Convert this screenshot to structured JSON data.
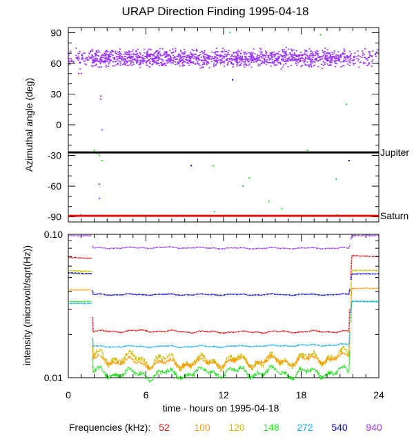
{
  "title": "URAP Direction Finding  1995-04-18",
  "xlabel": "time - hours on 1995-04-18",
  "legend": {
    "label": "Frequencies (kHz):",
    "items": [
      {
        "label": "52",
        "color": "#e01010"
      },
      {
        "label": "100",
        "color": "#ff9900"
      },
      {
        "label": "120",
        "color": "#ccb800"
      },
      {
        "label": "148",
        "color": "#22dd22"
      },
      {
        "label": "272",
        "color": "#11aaee"
      },
      {
        "label": "540",
        "color": "#0000cc"
      },
      {
        "label": "940",
        "color": "#9933ff"
      }
    ]
  },
  "chart_data": [
    {
      "type": "scatter",
      "ylabel": "Azimuthal angle (deg)",
      "xlim": [
        0,
        24
      ],
      "ylim": [
        -95,
        95
      ],
      "xticks": [
        "0",
        "6",
        "12",
        "18",
        "24"
      ],
      "yticks": [
        "90",
        "60",
        "30",
        "0",
        "-30",
        "-60",
        "-90"
      ],
      "reference_lines": [
        {
          "name": "Jupiter",
          "y": -27,
          "color": "#000000"
        },
        {
          "name": "Saturn",
          "y": -89,
          "color": "#e01010"
        }
      ],
      "series": [
        {
          "name": "940",
          "description": "dense cluster",
          "x_range": [
            0,
            24
          ],
          "y_center": 65,
          "y_spread": 8
        },
        {
          "name": "148",
          "points": [
            [
              2,
              -25
            ],
            [
              2.2,
              -28
            ],
            [
              2.4,
              -30
            ],
            [
              2.6,
              -35
            ],
            [
              11.2,
              -40
            ],
            [
              11.3,
              -85
            ],
            [
              12.5,
              90
            ],
            [
              14,
              -52
            ],
            [
              15.5,
              -75
            ],
            [
              16.5,
              -82
            ],
            [
              18.5,
              -25
            ],
            [
              19.5,
              88
            ],
            [
              20.8,
              -88
            ],
            [
              21.5,
              20
            ]
          ]
        }
      ]
    },
    {
      "type": "line",
      "ylabel": "intensity (microvolt/sqrt(Hz))",
      "yscale": "log",
      "xlim": [
        0,
        24
      ],
      "ylim": [
        0.01,
        0.1
      ],
      "yticks": [
        "0.10",
        "0.01"
      ],
      "series": [
        {
          "name": "940",
          "points": [
            [
              0,
              0.098
            ],
            [
              1.8,
              0.098
            ],
            [
              1.9,
              0.08
            ],
            [
              8,
              0.081
            ],
            [
              12,
              0.08
            ],
            [
              21.7,
              0.08
            ],
            [
              21.9,
              0.098
            ],
            [
              24,
              0.098
            ]
          ]
        },
        {
          "name": "52",
          "points": [
            [
              0,
              0.069
            ],
            [
              1.8,
              0.068
            ],
            [
              1.9,
              0.021
            ],
            [
              6,
              0.0212
            ],
            [
              12,
              0.0208
            ],
            [
              21.7,
              0.021
            ],
            [
              21.9,
              0.071
            ],
            [
              24,
              0.07
            ]
          ]
        },
        {
          "name": "120",
          "points": [
            [
              0,
              0.056
            ],
            [
              1.8,
              0.055
            ],
            [
              1.9,
              0.014
            ],
            [
              6,
              0.0135
            ],
            [
              9,
              0.0128
            ],
            [
              12,
              0.0132
            ],
            [
              16,
              0.013
            ],
            [
              21.7,
              0.0145
            ],
            [
              21.9,
              0.056
            ],
            [
              24,
              0.056
            ]
          ]
        },
        {
          "name": "540",
          "points": [
            [
              0,
              0.054
            ],
            [
              1.8,
              0.053
            ],
            [
              1.9,
              0.038
            ],
            [
              8,
              0.038
            ],
            [
              12,
              0.038
            ],
            [
              21.7,
              0.038
            ],
            [
              21.9,
              0.053
            ],
            [
              24,
              0.053
            ]
          ]
        },
        {
          "name": "100",
          "points": [
            [
              0,
              0.041
            ],
            [
              1.8,
              0.041
            ],
            [
              1.9,
              0.0135
            ],
            [
              6,
              0.0125
            ],
            [
              12,
              0.0128
            ],
            [
              18,
              0.0132
            ],
            [
              21.7,
              0.014
            ],
            [
              21.9,
              0.042
            ],
            [
              24,
              0.042
            ]
          ]
        },
        {
          "name": "148",
          "points": [
            [
              0,
              0.034
            ],
            [
              1.8,
              0.034
            ],
            [
              1.9,
              0.011
            ],
            [
              6,
              0.0105
            ],
            [
              12,
              0.011
            ],
            [
              18,
              0.0108
            ],
            [
              21.7,
              0.011
            ],
            [
              21.9,
              0.034
            ],
            [
              24,
              0.034
            ]
          ]
        },
        {
          "name": "272",
          "points": [
            [
              0,
              0.033
            ],
            [
              1.8,
              0.033
            ],
            [
              1.9,
              0.0165
            ],
            [
              8,
              0.0165
            ],
            [
              12,
              0.0165
            ],
            [
              21.7,
              0.017
            ],
            [
              21.9,
              0.034
            ],
            [
              24,
              0.034
            ]
          ]
        }
      ]
    }
  ]
}
